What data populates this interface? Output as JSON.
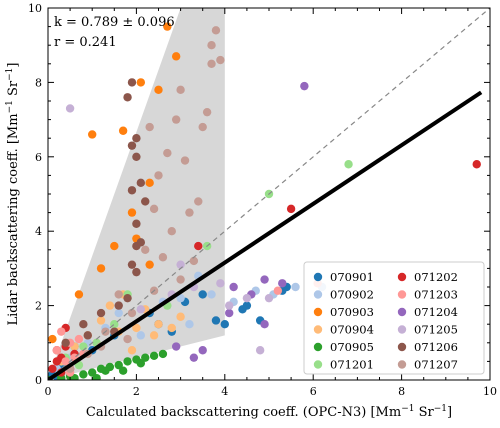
{
  "chart_data": {
    "type": "scatter",
    "xlabel_text": "Calculated backscattering coeff. (OPC-N3)",
    "xlabel_unit": "[Mm",
    "xlabel_sup": "−1",
    "xlabel_unit2": " Sr",
    "xlabel_sup2": "−1",
    "xlabel_end": "]",
    "ylabel_text": "Lidar backscattering coeff.",
    "ylabel_unit": "[Mm",
    "ylabel_sup": "−1",
    "ylabel_unit2": " Sr",
    "ylabel_sup2": "−1",
    "ylabel_end": "]",
    "xlim": [
      0,
      10
    ],
    "ylim": [
      0,
      10
    ],
    "xticks": [
      0,
      2,
      4,
      6,
      8,
      10
    ],
    "yticks": [
      0,
      2,
      4,
      6,
      8,
      10
    ],
    "annotation_k": "k = 0.789 ± 0.096",
    "annotation_r": "r = 0.241",
    "fit_slope": 0.789,
    "one_to_one_line": true,
    "shaded_region": [
      [
        0,
        0
      ],
      [
        3.0,
        10
      ],
      [
        4.0,
        10
      ],
      [
        4.0,
        1.2
      ]
    ],
    "legend_position": "lower-right",
    "series": [
      {
        "name": "070901",
        "color": "#1f77b4",
        "points": [
          [
            0.1,
            0.15
          ],
          [
            0.2,
            0.1
          ],
          [
            0.3,
            0.3
          ],
          [
            0.6,
            0.9
          ],
          [
            1.0,
            0.8
          ],
          [
            1.5,
            1.2
          ],
          [
            2.3,
            1.8
          ],
          [
            2.5,
            1.5
          ],
          [
            3.1,
            2.1
          ],
          [
            3.5,
            2.3
          ],
          [
            4.0,
            1.5
          ],
          [
            4.4,
            1.9
          ],
          [
            4.5,
            2.0
          ],
          [
            4.8,
            1.6
          ],
          [
            5.3,
            2.4
          ],
          [
            5.4,
            2.5
          ],
          [
            3.8,
            1.6
          ],
          [
            2.8,
            1.3
          ]
        ]
      },
      {
        "name": "070902",
        "color": "#aec7e8",
        "points": [
          [
            0.2,
            0.3
          ],
          [
            0.5,
            0.6
          ],
          [
            0.9,
            1.0
          ],
          [
            1.3,
            1.4
          ],
          [
            1.6,
            1.8
          ],
          [
            2.6,
            2.1
          ],
          [
            3.0,
            2.2
          ],
          [
            3.4,
            2.8
          ],
          [
            3.7,
            2.3
          ],
          [
            4.2,
            2.1
          ],
          [
            4.7,
            2.4
          ],
          [
            5.1,
            2.3
          ],
          [
            5.6,
            2.5
          ],
          [
            6.2,
            2.5
          ],
          [
            3.2,
            1.5
          ],
          [
            2.1,
            1.2
          ]
        ]
      },
      {
        "name": "070903",
        "color": "#ff7f0e",
        "points": [
          [
            0.1,
            1.1
          ],
          [
            0.7,
            2.3
          ],
          [
            1.0,
            6.6
          ],
          [
            1.2,
            3.0
          ],
          [
            1.7,
            6.7
          ],
          [
            1.9,
            4.5
          ],
          [
            2.0,
            3.8
          ],
          [
            2.1,
            8.0
          ],
          [
            2.3,
            5.3
          ],
          [
            2.5,
            7.8
          ],
          [
            2.7,
            9.5
          ],
          [
            2.9,
            8.7
          ],
          [
            2.3,
            3.1
          ],
          [
            1.5,
            3.6
          ]
        ]
      },
      {
        "name": "070904",
        "color": "#ffbb78",
        "points": [
          [
            0.3,
            0.5
          ],
          [
            0.6,
            0.9
          ],
          [
            0.9,
            1.2
          ],
          [
            1.2,
            1.6
          ],
          [
            1.4,
            2.0
          ],
          [
            1.7,
            2.3
          ],
          [
            2.0,
            1.4
          ],
          [
            2.2,
            1.9
          ],
          [
            2.5,
            1.5
          ],
          [
            2.8,
            1.4
          ],
          [
            3.0,
            1.7
          ],
          [
            1.6,
            1.3
          ],
          [
            2.4,
            1.2
          ],
          [
            1.9,
            0.8
          ]
        ]
      },
      {
        "name": "070905",
        "color": "#2ca02c",
        "points": [
          [
            0.0,
            0.0
          ],
          [
            0.3,
            0.05
          ],
          [
            0.5,
            0.1
          ],
          [
            0.8,
            0.15
          ],
          [
            1.0,
            0.2
          ],
          [
            1.2,
            0.3
          ],
          [
            1.4,
            0.35
          ],
          [
            1.6,
            0.4
          ],
          [
            1.8,
            0.5
          ],
          [
            2.0,
            0.55
          ],
          [
            2.2,
            0.6
          ],
          [
            2.4,
            0.65
          ],
          [
            1.1,
            0.05
          ],
          [
            1.7,
            0.25
          ],
          [
            2.6,
            0.7
          ],
          [
            0.6,
            0.05
          ],
          [
            1.3,
            0.25
          ],
          [
            2.1,
            0.45
          ]
        ]
      },
      {
        "name": "071201",
        "color": "#98df8a",
        "points": [
          [
            0.4,
            0.6
          ],
          [
            0.8,
            0.9
          ],
          [
            1.1,
            1.0
          ],
          [
            1.8,
            2.3
          ],
          [
            2.7,
            2.0
          ],
          [
            3.6,
            3.6
          ],
          [
            5.0,
            5.0
          ],
          [
            6.8,
            5.8
          ],
          [
            1.5,
            1.5
          ],
          [
            0.7,
            0.4
          ]
        ]
      },
      {
        "name": "071202",
        "color": "#d62728",
        "points": [
          [
            0.1,
            0.3
          ],
          [
            0.2,
            0.8
          ],
          [
            0.3,
            0.6
          ],
          [
            0.4,
            1.4
          ],
          [
            0.5,
            0.3
          ],
          [
            0.6,
            0.7
          ],
          [
            0.4,
            0.9
          ],
          [
            3.4,
            3.6
          ],
          [
            5.5,
            4.6
          ],
          [
            9.7,
            5.8
          ],
          [
            0.2,
            0.5
          ],
          [
            0.3,
            0.2
          ]
        ]
      },
      {
        "name": "071203",
        "color": "#ff9896",
        "points": [
          [
            0.2,
            0.8
          ],
          [
            0.4,
            0.5
          ],
          [
            0.5,
            1.0
          ],
          [
            0.6,
            0.6
          ],
          [
            0.7,
            1.1
          ],
          [
            0.3,
            1.3
          ],
          [
            0.5,
            0.2
          ],
          [
            6.1,
            2.6
          ],
          [
            5.2,
            2.4
          ],
          [
            0.8,
            0.7
          ]
        ]
      },
      {
        "name": "071204",
        "color": "#9467bd",
        "points": [
          [
            4.2,
            2.5
          ],
          [
            4.9,
            2.7
          ],
          [
            5.3,
            2.6
          ],
          [
            5.8,
            7.9
          ],
          [
            3.3,
            0.6
          ],
          [
            3.5,
            0.8
          ],
          [
            4.1,
            1.8
          ],
          [
            4.6,
            2.3
          ],
          [
            4.9,
            1.5
          ],
          [
            2.9,
            0.9
          ]
        ]
      },
      {
        "name": "071205",
        "color": "#c5b0d5",
        "points": [
          [
            0.5,
            7.3
          ],
          [
            2.1,
            1.9
          ],
          [
            2.8,
            2.3
          ],
          [
            3.3,
            2.5
          ],
          [
            3.9,
            2.6
          ],
          [
            4.1,
            2.0
          ],
          [
            4.5,
            2.2
          ],
          [
            5.0,
            2.2
          ],
          [
            4.8,
            0.8
          ],
          [
            3.0,
            3.1
          ]
        ]
      },
      {
        "name": "071206",
        "color": "#8c564b",
        "points": [
          [
            0.4,
            1.0
          ],
          [
            0.8,
            1.5
          ],
          [
            1.2,
            1.8
          ],
          [
            1.6,
            2.0
          ],
          [
            1.8,
            2.2
          ],
          [
            1.9,
            3.1
          ],
          [
            2.0,
            3.6
          ],
          [
            2.0,
            4.2
          ],
          [
            1.9,
            5.1
          ],
          [
            2.0,
            6.0
          ],
          [
            1.9,
            6.3
          ],
          [
            1.8,
            7.6
          ],
          [
            1.9,
            8.0
          ],
          [
            2.0,
            6.5
          ],
          [
            2.1,
            5.3
          ],
          [
            2.2,
            4.8
          ],
          [
            2.1,
            3.7
          ],
          [
            2.0,
            2.9
          ],
          [
            1.5,
            1.3
          ],
          [
            0.9,
            1.2
          ]
        ]
      },
      {
        "name": "071207",
        "color": "#c49c94",
        "points": [
          [
            0.5,
            0.3
          ],
          [
            0.9,
            0.7
          ],
          [
            1.3,
            1.3
          ],
          [
            1.6,
            2.3
          ],
          [
            1.9,
            1.8
          ],
          [
            2.2,
            3.5
          ],
          [
            2.4,
            4.6
          ],
          [
            2.5,
            5.5
          ],
          [
            2.7,
            6.1
          ],
          [
            2.9,
            7.0
          ],
          [
            3.0,
            7.8
          ],
          [
            3.2,
            4.5
          ],
          [
            3.5,
            6.8
          ],
          [
            3.6,
            7.2
          ],
          [
            3.7,
            8.5
          ],
          [
            3.7,
            9.0
          ],
          [
            3.8,
            9.4
          ],
          [
            3.9,
            8.6
          ],
          [
            3.1,
            5.9
          ],
          [
            2.6,
            3.3
          ],
          [
            3.3,
            3.2
          ],
          [
            2.8,
            4.0
          ],
          [
            2.4,
            2.4
          ],
          [
            3.4,
            4.8
          ],
          [
            1.8,
            1.1
          ],
          [
            1.2,
            0.9
          ],
          [
            2.3,
            6.8
          ],
          [
            3.0,
            2.7
          ]
        ]
      }
    ]
  }
}
